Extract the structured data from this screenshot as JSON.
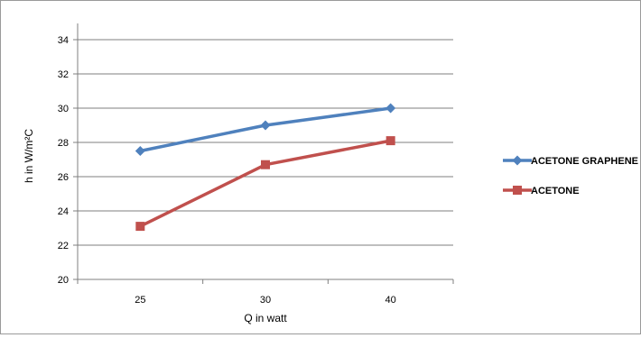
{
  "chart_data": {
    "type": "line",
    "categories": [
      "25",
      "30",
      "40"
    ],
    "series": [
      {
        "name": "ACETONE GRAPHENE",
        "values": [
          27.5,
          29.0,
          30.0
        ],
        "color": "#4f81bd",
        "marker": "diamond"
      },
      {
        "name": "ACETONE",
        "values": [
          23.1,
          26.7,
          28.1
        ],
        "color": "#c0504d",
        "marker": "square"
      }
    ],
    "title": "",
    "xlabel": "Q in watt",
    "ylabel": "h in W/m²C",
    "ylim": [
      20,
      34
    ],
    "yticks": [
      20,
      22,
      24,
      26,
      28,
      30,
      32,
      34
    ],
    "grid": true,
    "legend_position": "right"
  }
}
